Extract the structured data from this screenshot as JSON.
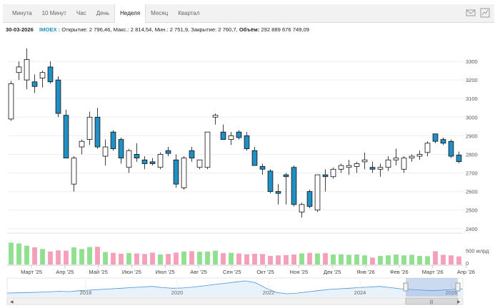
{
  "toolbar": {
    "tabs": [
      "Минута",
      "10 Минут",
      "Час",
      "День",
      "Неделя",
      "Месяц",
      "Квартал"
    ],
    "active_tab": "Неделя",
    "icons": [
      "mail-icon",
      "chart-type-icon"
    ]
  },
  "info": {
    "date": "30-03-2026",
    "ticker": "IMOEX :",
    "open_label": "Открытие:",
    "open": "2 796,46,",
    "high_label": "Макс.:",
    "high": "2 814,54,",
    "low_label": "Мин.:",
    "low": "2 751,9,",
    "close_label": "Закрытие:",
    "close": "2 760,7,",
    "volume_label": "Объём:",
    "volume": "292 889 676 749,09"
  },
  "chart_data": {
    "type": "candlestick",
    "y_axis": {
      "ticks": [
        "2400",
        "2500",
        "2600",
        "2700",
        "2800",
        "2900",
        "3000",
        "3100",
        "3200",
        "3300"
      ],
      "range": [
        2380,
        3400
      ],
      "position": "right"
    },
    "volume_axis": {
      "ticks": [
        "500 млрд",
        "0"
      ],
      "max_billion": 850
    },
    "x_labels": [
      "Март '25",
      "Апр '25",
      "Май '25",
      "Июн '25",
      "Июл '25",
      "Авг '25",
      "Сен '25",
      "Окт '25",
      "Ноя '25",
      "Дек '25",
      "Янв '26",
      "Фев '26",
      "Март '26",
      "Апр '26"
    ],
    "navigator_labels": [
      "2018",
      "2020",
      "2022",
      "2024",
      "2026"
    ],
    "up_color": "#ffffff",
    "down_color": "#1f8fc4",
    "vol_up_color": "#90e090",
    "vol_down_color": "#f5a0b8",
    "candles": [
      {
        "o": 2990,
        "h": 3195,
        "l": 2980,
        "c": 3180
      },
      {
        "o": 3240,
        "h": 3300,
        "l": 3200,
        "c": 3270
      },
      {
        "o": 3200,
        "h": 3370,
        "l": 3150,
        "c": 3310
      },
      {
        "o": 3190,
        "h": 3230,
        "l": 3130,
        "c": 3165
      },
      {
        "o": 3210,
        "h": 3250,
        "l": 3160,
        "c": 3240
      },
      {
        "o": 3270,
        "h": 3300,
        "l": 3180,
        "c": 3190
      },
      {
        "o": 3200,
        "h": 3220,
        "l": 3000,
        "c": 3020
      },
      {
        "o": 3010,
        "h": 3040,
        "l": 2780,
        "c": 2780
      },
      {
        "o": 2640,
        "h": 2790,
        "l": 2600,
        "c": 2780
      },
      {
        "o": 2840,
        "h": 2880,
        "l": 2800,
        "c": 2870
      },
      {
        "o": 2880,
        "h": 3030,
        "l": 2850,
        "c": 3000
      },
      {
        "o": 3000,
        "h": 3050,
        "l": 2830,
        "c": 2840
      },
      {
        "o": 2790,
        "h": 2880,
        "l": 2740,
        "c": 2840
      },
      {
        "o": 2920,
        "h": 2930,
        "l": 2820,
        "c": 2830
      },
      {
        "o": 2880,
        "h": 2890,
        "l": 2750,
        "c": 2780
      },
      {
        "o": 2730,
        "h": 2830,
        "l": 2700,
        "c": 2820
      },
      {
        "o": 2800,
        "h": 2860,
        "l": 2760,
        "c": 2780
      },
      {
        "o": 2770,
        "h": 2790,
        "l": 2720,
        "c": 2750
      },
      {
        "o": 2760,
        "h": 2780,
        "l": 2740,
        "c": 2750
      },
      {
        "o": 2730,
        "h": 2810,
        "l": 2720,
        "c": 2800
      },
      {
        "o": 2820,
        "h": 2840,
        "l": 2790,
        "c": 2805
      },
      {
        "o": 2770,
        "h": 2800,
        "l": 2620,
        "c": 2640
      },
      {
        "o": 2620,
        "h": 2790,
        "l": 2610,
        "c": 2780
      },
      {
        "o": 2820,
        "h": 2840,
        "l": 2760,
        "c": 2780
      },
      {
        "o": 2730,
        "h": 2770,
        "l": 2720,
        "c": 2770
      },
      {
        "o": 2730,
        "h": 2920,
        "l": 2720,
        "c": 2920
      },
      {
        "o": 3000,
        "h": 3020,
        "l": 2960,
        "c": 3010
      },
      {
        "o": 2920,
        "h": 2960,
        "l": 2880,
        "c": 2880
      },
      {
        "o": 2880,
        "h": 2920,
        "l": 2850,
        "c": 2900
      },
      {
        "o": 2920,
        "h": 2930,
        "l": 2880,
        "c": 2890
      },
      {
        "o": 2900,
        "h": 2920,
        "l": 2820,
        "c": 2830
      },
      {
        "o": 2820,
        "h": 2840,
        "l": 2740,
        "c": 2740
      },
      {
        "o": 2735,
        "h": 2750,
        "l": 2690,
        "c": 2720
      },
      {
        "o": 2710,
        "h": 2720,
        "l": 2590,
        "c": 2600
      },
      {
        "o": 2600,
        "h": 2640,
        "l": 2530,
        "c": 2590
      },
      {
        "o": 2690,
        "h": 2700,
        "l": 2530,
        "c": 2680
      },
      {
        "o": 2730,
        "h": 2740,
        "l": 2520,
        "c": 2530
      },
      {
        "o": 2490,
        "h": 2540,
        "l": 2460,
        "c": 2530
      },
      {
        "o": 2600,
        "h": 2610,
        "l": 2510,
        "c": 2520
      },
      {
        "o": 2500,
        "h": 2690,
        "l": 2490,
        "c": 2690
      },
      {
        "o": 2690,
        "h": 2720,
        "l": 2600,
        "c": 2680
      },
      {
        "o": 2680,
        "h": 2730,
        "l": 2670,
        "c": 2720
      },
      {
        "o": 2720,
        "h": 2750,
        "l": 2700,
        "c": 2740
      },
      {
        "o": 2730,
        "h": 2770,
        "l": 2690,
        "c": 2740
      },
      {
        "o": 2735,
        "h": 2760,
        "l": 2700,
        "c": 2750
      },
      {
        "o": 2760,
        "h": 2810,
        "l": 2720,
        "c": 2770
      },
      {
        "o": 2730,
        "h": 2760,
        "l": 2700,
        "c": 2720
      },
      {
        "o": 2720,
        "h": 2750,
        "l": 2680,
        "c": 2730
      },
      {
        "o": 2730,
        "h": 2790,
        "l": 2710,
        "c": 2770
      },
      {
        "o": 2770,
        "h": 2830,
        "l": 2740,
        "c": 2780
      },
      {
        "o": 2720,
        "h": 2790,
        "l": 2700,
        "c": 2780
      },
      {
        "o": 2780,
        "h": 2800,
        "l": 2760,
        "c": 2790
      },
      {
        "o": 2790,
        "h": 2820,
        "l": 2770,
        "c": 2800
      },
      {
        "o": 2810,
        "h": 2870,
        "l": 2790,
        "c": 2860
      },
      {
        "o": 2910,
        "h": 2910,
        "l": 2860,
        "c": 2870
      },
      {
        "o": 2880,
        "h": 2890,
        "l": 2850,
        "c": 2860
      },
      {
        "o": 2870,
        "h": 2880,
        "l": 2780,
        "c": 2790
      },
      {
        "o": 2796,
        "h": 2815,
        "l": 2752,
        "c": 2761
      }
    ],
    "volumes_billion": [
      790,
      760,
      680,
      620,
      560,
      470,
      510,
      500,
      620,
      560,
      630,
      640,
      450,
      420,
      390,
      410,
      400,
      380,
      430,
      360,
      380,
      430,
      470,
      480,
      460,
      470,
      500,
      410,
      420,
      400,
      370,
      390,
      380,
      310,
      330,
      340,
      360,
      400,
      420,
      400,
      410,
      360,
      370,
      350,
      360,
      330,
      250,
      310,
      330,
      360,
      330,
      350,
      310,
      300,
      480,
      350,
      330,
      292
    ],
    "navigator_series": [
      2200,
      2250,
      2300,
      2350,
      2400,
      2500,
      2450,
      2600,
      2700,
      2800,
      2900,
      3000,
      3100,
      3200,
      3300,
      3100,
      3000,
      3050,
      3200,
      3400,
      3600,
      3800,
      4000,
      4200,
      3900,
      3000,
      2300,
      2100,
      2200,
      2400,
      2600,
      2800,
      2900,
      3000,
      3100,
      3200,
      3300,
      3100,
      2900,
      2800,
      2700,
      2600,
      2700,
      2800,
      2900
    ]
  }
}
